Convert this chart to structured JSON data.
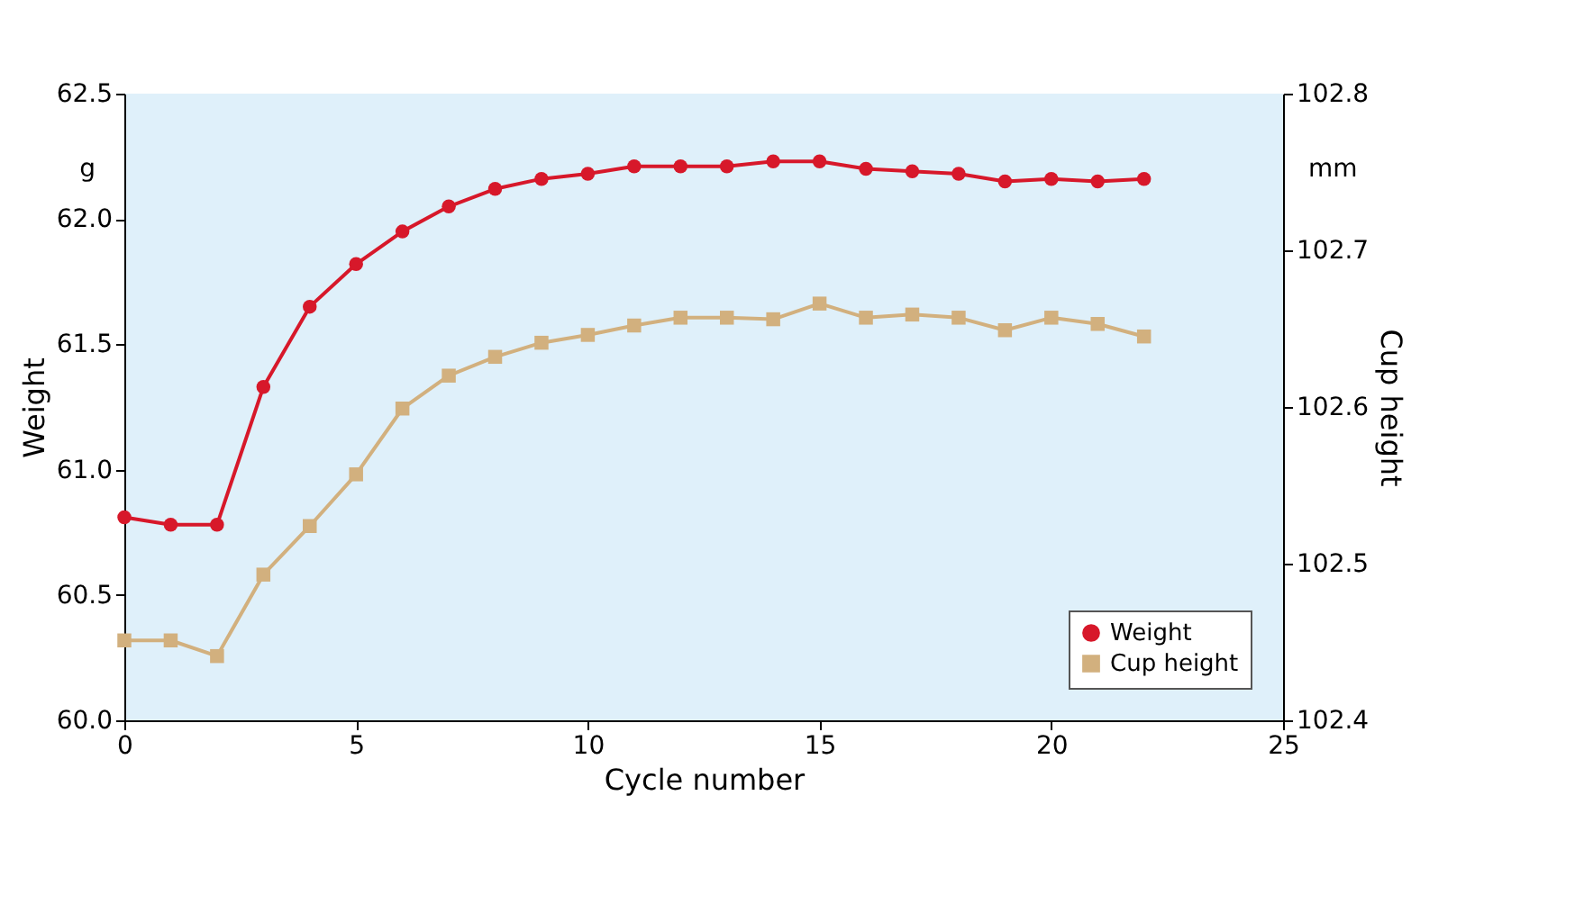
{
  "chart_data": {
    "type": "line",
    "xlabel": "Cycle number",
    "ylabel": "Weight",
    "y2label": "Cup height",
    "x": [
      0,
      1,
      2,
      3,
      4,
      5,
      6,
      7,
      8,
      9,
      10,
      11,
      12,
      13,
      14,
      15,
      16,
      17,
      18,
      19,
      20,
      21,
      22
    ],
    "series": [
      {
        "name": "Weight",
        "color": "#d7182a",
        "marker": "circle",
        "values": [
          60.81,
          60.78,
          60.78,
          61.33,
          61.65,
          61.82,
          61.95,
          62.05,
          62.12,
          62.16,
          62.18,
          62.21,
          62.21,
          62.21,
          62.23,
          62.23,
          62.2,
          62.19,
          62.18,
          62.15,
          62.16,
          62.15,
          62.16
        ]
      },
      {
        "name": "Cup height",
        "color": "#d2b07e",
        "marker": "square",
        "axis": "y2",
        "values": [
          102.451,
          102.451,
          102.441,
          102.493,
          102.524,
          102.557,
          102.599,
          102.62,
          102.632,
          102.641,
          102.646,
          102.652,
          102.657,
          102.657,
          102.656,
          102.666,
          102.657,
          102.659,
          102.657,
          102.649,
          102.657,
          102.653,
          102.645
        ]
      }
    ],
    "xlim": [
      0,
      25
    ],
    "xticks": [
      0,
      5,
      10,
      15,
      20,
      25
    ],
    "ylim": [
      60.0,
      62.5
    ],
    "yticks": [
      {
        "value": 60.0,
        "label": "60.0"
      },
      {
        "value": 60.5,
        "label": "60.5"
      },
      {
        "value": 61.0,
        "label": "61.0"
      },
      {
        "value": 61.5,
        "label": "61.5"
      },
      {
        "value": 62.0,
        "label": "62.0"
      },
      {
        "value": 62.5,
        "label": "62.5"
      }
    ],
    "y2lim": [
      102.4,
      102.8
    ],
    "y2ticks": [
      {
        "value": 102.4,
        "label": "102.4"
      },
      {
        "value": 102.5,
        "label": "102.5"
      },
      {
        "value": 102.6,
        "label": "102.6"
      },
      {
        "value": 102.7,
        "label": "102.7"
      },
      {
        "value": 102.8,
        "label": "102.8"
      }
    ],
    "annotations": [
      "g",
      "mm"
    ],
    "grid": false,
    "legend": "bottom right"
  }
}
